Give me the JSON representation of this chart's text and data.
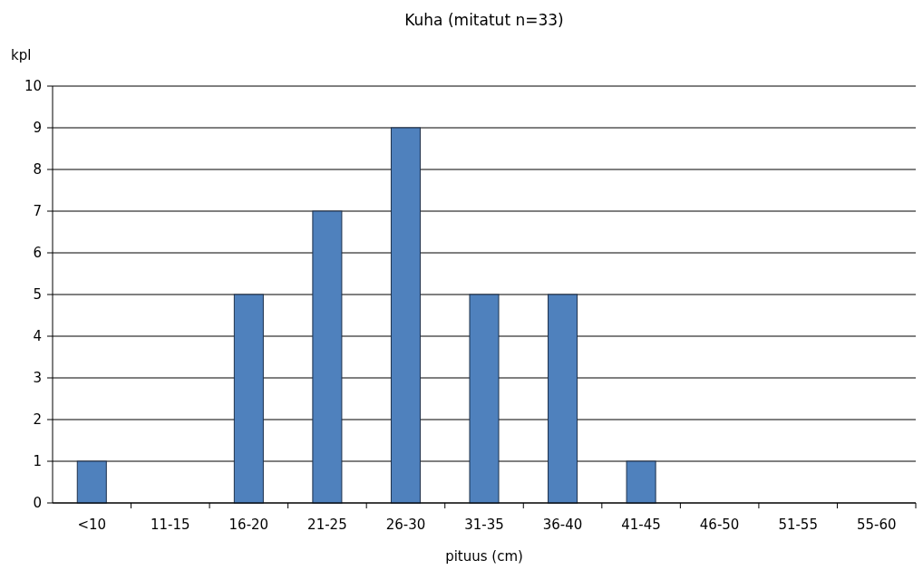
{
  "chart_data": {
    "type": "bar",
    "title": "Kuha  (mitatut n=33)",
    "xlabel": "pituus (cm)",
    "ylabel": "kpl",
    "categories": [
      "<10",
      "11-15",
      "16-20",
      "21-25",
      "26-30",
      "31-35",
      "36-40",
      "41-45",
      "46-50",
      "51-55",
      "55-60"
    ],
    "values": [
      1,
      0,
      5,
      7,
      9,
      5,
      5,
      1,
      0,
      0,
      0
    ],
    "color": "#4f81bd",
    "ylim": [
      0,
      10
    ],
    "yticks": [
      0,
      1,
      2,
      3,
      4,
      5,
      6,
      7,
      8,
      9,
      10
    ],
    "grid": "y"
  }
}
